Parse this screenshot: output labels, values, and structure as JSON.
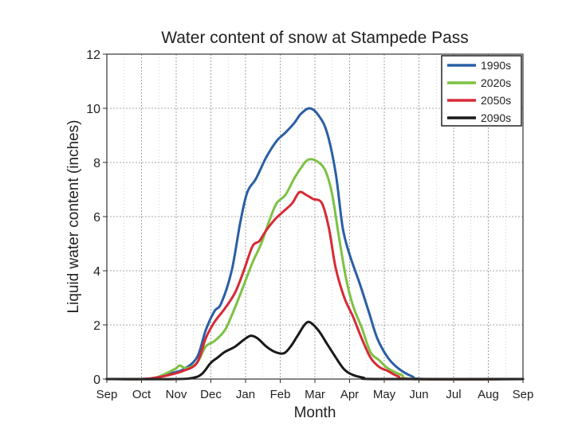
{
  "chart_data": {
    "type": "line",
    "title": "Water content of snow at Stampede Pass",
    "xlabel": "Month",
    "ylabel": "Liquid water content (inches)",
    "xlim": [
      0,
      12
    ],
    "ylim": [
      0,
      12
    ],
    "y_ticks": [
      0,
      2,
      4,
      6,
      8,
      10,
      12
    ],
    "x_tick_labels": [
      "Sep",
      "Oct",
      "Nov",
      "Dec",
      "Jan",
      "Feb",
      "Mar",
      "Apr",
      "May",
      "Jun",
      "Jul",
      "Aug",
      "Sep"
    ],
    "grid": true,
    "legend_position": "top-right",
    "series": [
      {
        "name": "1990s",
        "color": "#2a5fa4",
        "points": [
          [
            0.0,
            0
          ],
          [
            1.0,
            0
          ],
          [
            1.4,
            0.05
          ],
          [
            1.8,
            0.2
          ],
          [
            2.2,
            0.35
          ],
          [
            2.6,
            0.8
          ],
          [
            2.85,
            1.8
          ],
          [
            3.1,
            2.5
          ],
          [
            3.3,
            2.8
          ],
          [
            3.6,
            4.0
          ],
          [
            3.85,
            5.8
          ],
          [
            4.05,
            6.9
          ],
          [
            4.3,
            7.4
          ],
          [
            4.6,
            8.2
          ],
          [
            4.9,
            8.8
          ],
          [
            5.15,
            9.1
          ],
          [
            5.4,
            9.45
          ],
          [
            5.6,
            9.8
          ],
          [
            5.85,
            10.0
          ],
          [
            6.1,
            9.75
          ],
          [
            6.35,
            9.1
          ],
          [
            6.6,
            7.6
          ],
          [
            6.8,
            5.6
          ],
          [
            7.0,
            4.6
          ],
          [
            7.3,
            3.5
          ],
          [
            7.55,
            2.5
          ],
          [
            7.8,
            1.5
          ],
          [
            8.1,
            0.8
          ],
          [
            8.4,
            0.4
          ],
          [
            8.8,
            0.1
          ],
          [
            9.2,
            0
          ],
          [
            12.0,
            0
          ]
        ]
      },
      {
        "name": "2020s",
        "color": "#7dc143",
        "points": [
          [
            0.0,
            0
          ],
          [
            1.0,
            0
          ],
          [
            1.4,
            0.05
          ],
          [
            1.7,
            0.2
          ],
          [
            2.0,
            0.4
          ],
          [
            2.1,
            0.5
          ],
          [
            2.3,
            0.4
          ],
          [
            2.6,
            0.6
          ],
          [
            2.85,
            1.2
          ],
          [
            3.1,
            1.4
          ],
          [
            3.4,
            1.8
          ],
          [
            3.65,
            2.5
          ],
          [
            3.9,
            3.3
          ],
          [
            4.2,
            4.3
          ],
          [
            4.45,
            5.0
          ],
          [
            4.7,
            5.9
          ],
          [
            4.9,
            6.5
          ],
          [
            5.15,
            6.8
          ],
          [
            5.4,
            7.4
          ],
          [
            5.6,
            7.8
          ],
          [
            5.8,
            8.1
          ],
          [
            6.05,
            8.05
          ],
          [
            6.3,
            7.7
          ],
          [
            6.5,
            6.8
          ],
          [
            6.7,
            5.2
          ],
          [
            6.9,
            3.7
          ],
          [
            7.1,
            2.7
          ],
          [
            7.35,
            1.9
          ],
          [
            7.6,
            1.0
          ],
          [
            7.85,
            0.7
          ],
          [
            8.1,
            0.4
          ],
          [
            8.5,
            0.15
          ],
          [
            8.9,
            0
          ],
          [
            12.0,
            0
          ]
        ]
      },
      {
        "name": "2050s",
        "color": "#d72a36",
        "points": [
          [
            0.0,
            0
          ],
          [
            1.0,
            0
          ],
          [
            1.4,
            0.05
          ],
          [
            1.8,
            0.15
          ],
          [
            2.2,
            0.3
          ],
          [
            2.6,
            0.6
          ],
          [
            2.85,
            1.5
          ],
          [
            3.1,
            2.1
          ],
          [
            3.4,
            2.6
          ],
          [
            3.7,
            3.2
          ],
          [
            3.95,
            4.0
          ],
          [
            4.2,
            4.9
          ],
          [
            4.4,
            5.1
          ],
          [
            4.6,
            5.5
          ],
          [
            4.85,
            5.9
          ],
          [
            5.1,
            6.2
          ],
          [
            5.35,
            6.5
          ],
          [
            5.55,
            6.9
          ],
          [
            5.75,
            6.8
          ],
          [
            5.95,
            6.65
          ],
          [
            6.2,
            6.5
          ],
          [
            6.4,
            5.6
          ],
          [
            6.6,
            4.1
          ],
          [
            6.85,
            3.0
          ],
          [
            7.1,
            2.3
          ],
          [
            7.35,
            1.5
          ],
          [
            7.6,
            0.8
          ],
          [
            7.85,
            0.45
          ],
          [
            8.1,
            0.3
          ],
          [
            8.4,
            0.1
          ],
          [
            8.8,
            0
          ],
          [
            12.0,
            0
          ]
        ]
      },
      {
        "name": "2090s",
        "color": "#1a1a1a",
        "points": [
          [
            0.0,
            0
          ],
          [
            2.0,
            0
          ],
          [
            2.5,
            0.05
          ],
          [
            2.75,
            0.2
          ],
          [
            3.0,
            0.6
          ],
          [
            3.2,
            0.8
          ],
          [
            3.4,
            1.0
          ],
          [
            3.7,
            1.2
          ],
          [
            3.95,
            1.45
          ],
          [
            4.15,
            1.6
          ],
          [
            4.35,
            1.5
          ],
          [
            4.6,
            1.2
          ],
          [
            4.85,
            1.0
          ],
          [
            5.1,
            0.95
          ],
          [
            5.3,
            1.2
          ],
          [
            5.5,
            1.6
          ],
          [
            5.7,
            2.0
          ],
          [
            5.85,
            2.1
          ],
          [
            6.1,
            1.8
          ],
          [
            6.35,
            1.3
          ],
          [
            6.6,
            0.8
          ],
          [
            6.85,
            0.35
          ],
          [
            7.1,
            0.15
          ],
          [
            7.4,
            0.05
          ],
          [
            7.8,
            0
          ],
          [
            12.0,
            0
          ]
        ]
      }
    ]
  }
}
